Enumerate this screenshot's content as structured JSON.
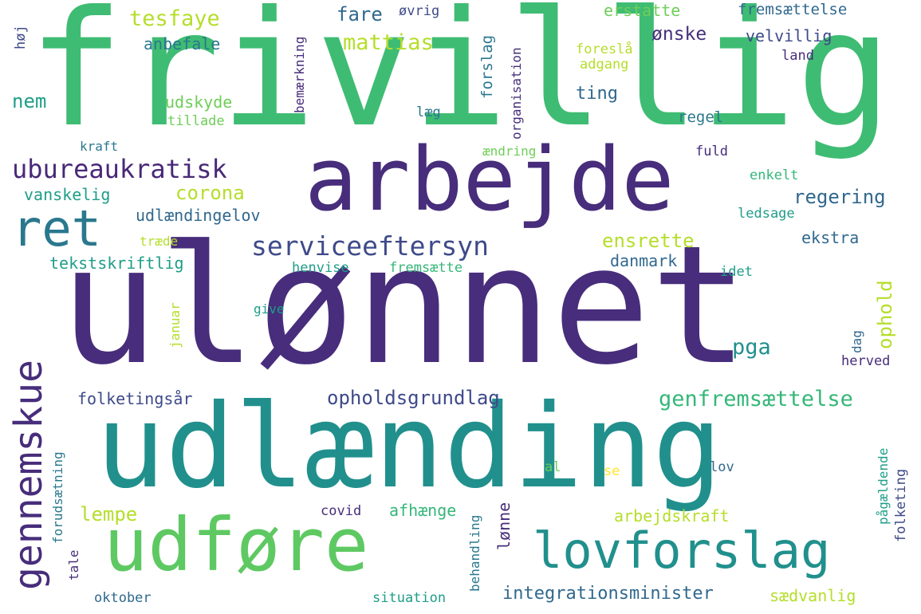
{
  "word_cloud": {
    "colors": {
      "dark_purple": "#472d7b",
      "indigo": "#3e4a89",
      "blue_teal": "#31688e",
      "teal": "#26828e",
      "teal_green": "#1f9e89",
      "green": "#35b779",
      "light_green": "#6ece58",
      "yellow_green": "#b5de2b",
      "yellow": "#fde725"
    },
    "words": [
      "frivillig",
      "ulønnet",
      "udlænding",
      "arbejde",
      "udføre",
      "lovforslag",
      "ret",
      "gennemskue",
      "ubureaukratisk",
      "serviceeftersyn",
      "genfremsættelse",
      "opholdsgrundlag",
      "tesfaye",
      "mattias",
      "fare",
      "ønske",
      "velvillig",
      "erstatte",
      "fremsættelse",
      "øvrig",
      "organisation",
      "anbefale",
      "nem",
      "udskyde",
      "tillade",
      "høj",
      "kraft",
      "bemærkning",
      "forslag",
      "foreslå",
      "adgang",
      "land",
      "ting",
      "læg",
      "regel",
      "ændring",
      "fuld",
      "enkelt",
      "corona",
      "vanskelig",
      "regering",
      "udlændingelov",
      "ledsage",
      "ensrette",
      "ekstra",
      "træde",
      "tekstskriftlig",
      "danmark",
      "henvise",
      "fremsætte",
      "idet",
      "ophold",
      "januar",
      "give",
      "pga",
      "dag",
      "herved",
      "folketingsår",
      "forudsætning",
      "pågældende",
      "folketing",
      "lov",
      "al",
      "se",
      "lempe",
      "afhænge",
      "covid",
      "lønne",
      "arbejdskraft",
      "behandling",
      "tale",
      "oktober",
      "situation",
      "integrationsminister",
      "sædvanlig"
    ]
  }
}
